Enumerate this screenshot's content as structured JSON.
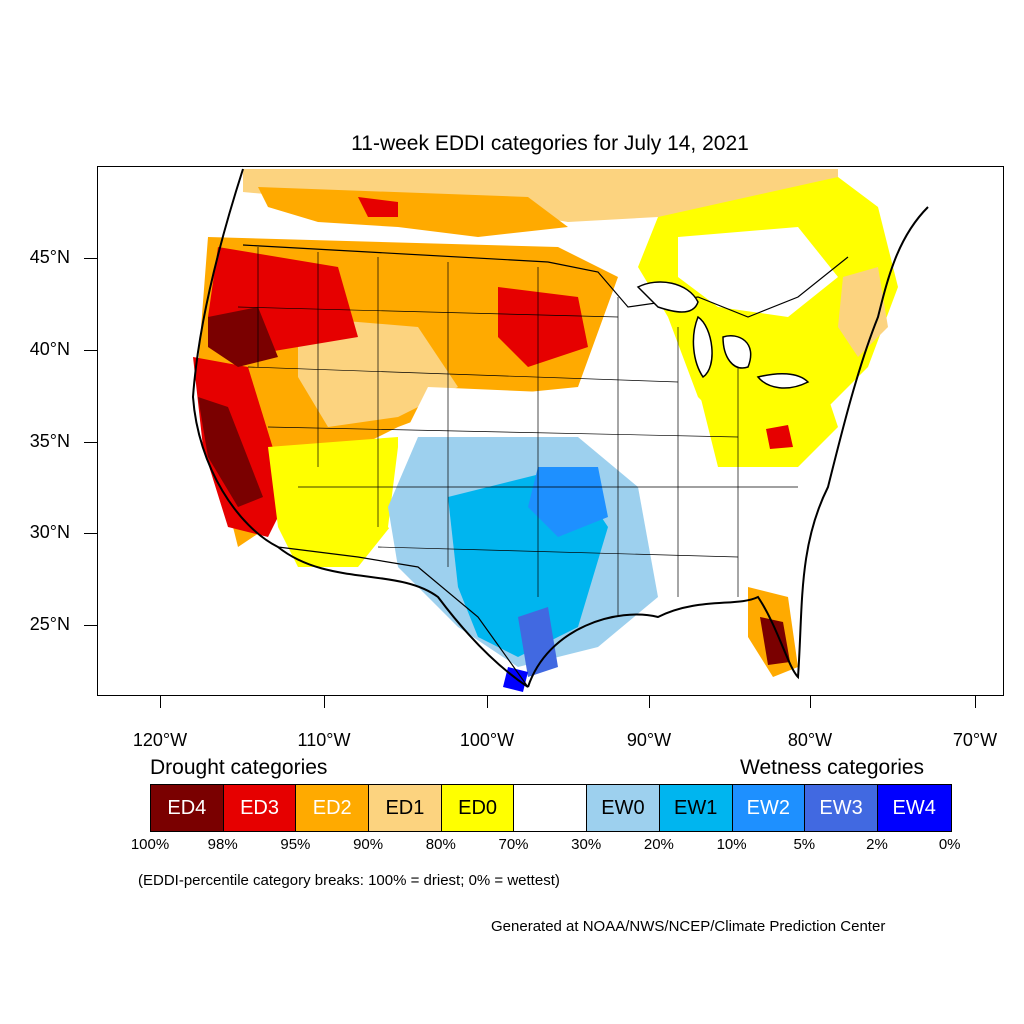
{
  "title": "11-week EDDI categories for July 14, 2021",
  "map": {
    "lat_labels": [
      "45°N",
      "40°N",
      "35°N",
      "30°N",
      "25°N"
    ],
    "lon_labels": [
      "120°W",
      "110°W",
      "100°W",
      "90°W",
      "80°W",
      "70°W"
    ]
  },
  "legend": {
    "drought_heading": "Drought categories",
    "wetness_heading": "Wetness categories",
    "categories": [
      {
        "label": "ED4",
        "color": "#7a0000",
        "text_color": "#ffffff"
      },
      {
        "label": "ED3",
        "color": "#e60000",
        "text_color": "#ffffff"
      },
      {
        "label": "ED2",
        "color": "#ffaa00",
        "text_color": "#ffffff"
      },
      {
        "label": "ED1",
        "color": "#fcd37f",
        "text_color": "#000000"
      },
      {
        "label": "ED0",
        "color": "#ffff00",
        "text_color": "#000000"
      },
      {
        "label": "",
        "color": "#ffffff",
        "text_color": "#000000"
      },
      {
        "label": "EW0",
        "color": "#9dd0ee",
        "text_color": "#000000"
      },
      {
        "label": "EW1",
        "color": "#00b5ef",
        "text_color": "#000000"
      },
      {
        "label": "EW2",
        "color": "#1e90ff",
        "text_color": "#ffffff"
      },
      {
        "label": "EW3",
        "color": "#4169e1",
        "text_color": "#ffffff"
      },
      {
        "label": "EW4",
        "color": "#0000ff",
        "text_color": "#ffffff"
      }
    ],
    "percentiles": [
      "100%",
      "98%",
      "95%",
      "90%",
      "80%",
      "70%",
      "30%",
      "20%",
      "10%",
      "5%",
      "2%",
      "0%"
    ],
    "note": "(EDDI-percentile category breaks: 100% = driest; 0% = wettest)"
  },
  "credit": "Generated at NOAA/NWS/NCEP/Climate Prediction Center"
}
